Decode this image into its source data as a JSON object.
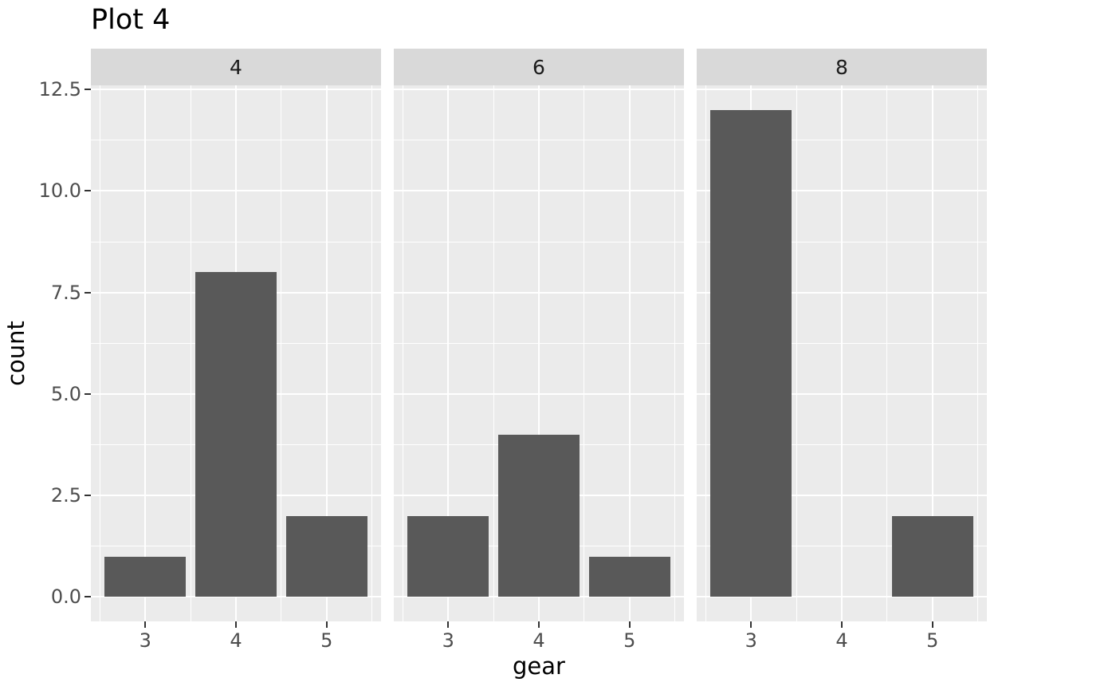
{
  "title": "Plot 4",
  "chart_data": {
    "type": "bar",
    "title": "Plot 4",
    "xlabel": "gear",
    "ylabel": "count",
    "facet_variable_values": [
      "4",
      "6",
      "8"
    ],
    "categories": [
      "3",
      "4",
      "5"
    ],
    "series": [
      {
        "name": "4",
        "values": [
          1,
          8,
          2
        ]
      },
      {
        "name": "6",
        "values": [
          2,
          4,
          1
        ]
      },
      {
        "name": "8",
        "values": [
          12,
          0,
          2
        ]
      }
    ],
    "y_ticks": [
      0.0,
      2.5,
      5.0,
      7.5,
      10.0,
      12.5
    ],
    "y_tick_labels": [
      "0.0",
      "2.5",
      "5.0",
      "7.5",
      "10.0",
      "12.5"
    ],
    "y_minor_ticks": [
      1.25,
      3.75,
      6.25,
      8.75,
      11.25
    ],
    "ylim_expanded": [
      -0.6,
      13.2
    ],
    "grid": "on",
    "legend_position": "none",
    "colors": {
      "bar_fill": "#595959",
      "panel_background": "#ebebeb",
      "strip_background": "#d9d9d9",
      "grid_line": "#ffffff",
      "tick_mark": "#333333",
      "tick_label": "#4d4d4d",
      "axis_title": "#000000",
      "strip_text": "#1a1a1a",
      "plot_background": "#ffffff"
    }
  }
}
